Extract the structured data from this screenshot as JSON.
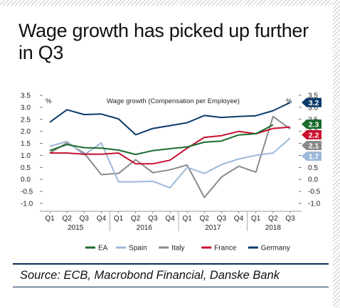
{
  "headline": "Wage growth has picked up further in Q3",
  "source": "Source: ECB, Macrobond Financial, Danske Bank",
  "chart_data": {
    "type": "line",
    "title": "Wage growth (Compensation per Employee)",
    "y_unit_left": "%",
    "y_unit_right": "%",
    "ylim": [
      -1.0,
      3.5
    ],
    "yticks": [
      -1.0,
      -0.5,
      0.0,
      0.5,
      1.0,
      1.5,
      2.0,
      2.5,
      3.0,
      3.5
    ],
    "ytick_labels": [
      "-1.0",
      "-0.5",
      "0.0",
      "0.5",
      "1.0",
      "1.5",
      "2.0",
      "2.5",
      "3.0",
      "3.5"
    ],
    "quarters": [
      "Q1",
      "Q2",
      "Q3",
      "Q4",
      "Q1",
      "Q2",
      "Q3",
      "Q4",
      "Q1",
      "Q2",
      "Q3",
      "Q4",
      "Q1",
      "Q2",
      "Q3"
    ],
    "years": [
      {
        "label": "2015",
        "start": 0
      },
      {
        "label": "2016",
        "start": 4
      },
      {
        "label": "2017",
        "start": 8
      },
      {
        "label": "2018",
        "start": 12
      }
    ],
    "grid": false,
    "legend_position": "bottom",
    "series": [
      {
        "name": "EA",
        "color": "#1a6b2e",
        "values": [
          1.2,
          1.45,
          1.32,
          1.3,
          1.22,
          1.04,
          1.2,
          1.28,
          1.35,
          1.55,
          1.6,
          1.85,
          1.9,
          2.27,
          null
        ],
        "end_label": "2.3"
      },
      {
        "name": "Spain",
        "color": "#9db8d8",
        "values": [
          1.38,
          1.58,
          1.02,
          1.52,
          -0.1,
          -0.1,
          -0.08,
          -0.35,
          0.5,
          0.25,
          0.62,
          0.85,
          1.0,
          1.1,
          1.72
        ],
        "end_label": "1.7"
      },
      {
        "name": "Italy",
        "color": "#8a8a8a",
        "values": [
          1.1,
          1.52,
          1.1,
          0.2,
          0.25,
          0.82,
          0.28,
          0.4,
          0.6,
          -0.75,
          0.1,
          0.55,
          0.3,
          2.62,
          2.1
        ],
        "end_label": "2.1"
      },
      {
        "name": "France",
        "color": "#c8102e",
        "values": [
          1.1,
          1.1,
          1.05,
          1.05,
          1.1,
          0.65,
          0.65,
          0.8,
          1.3,
          1.75,
          1.82,
          2.0,
          1.9,
          2.12,
          2.18
        ],
        "end_label": "2.2"
      },
      {
        "name": "Germany",
        "color": "#0b3a6a",
        "values": [
          2.38,
          2.9,
          2.7,
          2.72,
          2.52,
          1.86,
          2.12,
          2.24,
          2.36,
          2.66,
          2.58,
          2.62,
          2.65,
          2.86,
          3.2
        ],
        "end_label": "3.2"
      }
    ]
  }
}
